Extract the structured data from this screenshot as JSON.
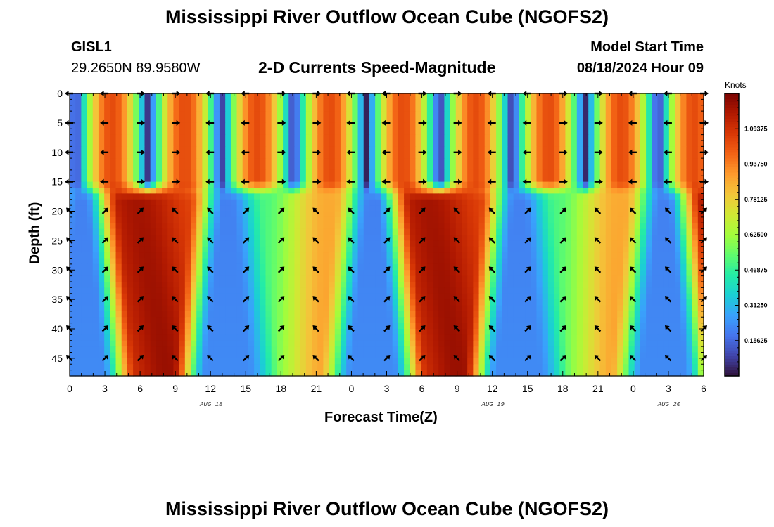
{
  "titles": {
    "main_top": "Mississippi River Outflow Ocean Cube (NGOFS2)",
    "main_bottom": "Mississippi River Outflow Ocean Cube (NGOFS2)"
  },
  "station": {
    "id": "GISL1",
    "coords": "29.2650N  89.9580W"
  },
  "model": {
    "start_label": "Model Start Time",
    "start_time": "08/18/2024 Hour 09"
  },
  "chart_data": {
    "type": "heatmap",
    "title": "2-D Currents Speed-Magnitude",
    "xlabel": "Forecast Time(Z)",
    "ylabel": "Depth (ft)",
    "x_ticks": [
      "0",
      "3",
      "6",
      "9",
      "12",
      "15",
      "18",
      "21",
      "0",
      "3",
      "6",
      "9",
      "12",
      "15",
      "18",
      "21",
      "0",
      "3",
      "6"
    ],
    "x_hours": [
      0,
      54
    ],
    "date_labels": [
      {
        "text": "AUG 18",
        "hour": 12
      },
      {
        "text": "AUG 19",
        "hour": 36
      },
      {
        "text": "AUG 20",
        "hour": 51
      }
    ],
    "y_ticks": [
      "0",
      "5",
      "10",
      "15",
      "20",
      "25",
      "30",
      "35",
      "40",
      "45"
    ],
    "ylim": [
      0,
      48
    ],
    "colorbar": {
      "units": "Knots",
      "range": [
        0,
        1.25
      ],
      "labels": [
        "1.09375",
        "0.93750",
        "0.78125",
        "0.62500",
        "0.46875",
        "0.31250",
        "0.15625"
      ],
      "label_values": [
        1.09375,
        0.9375,
        0.78125,
        0.625,
        0.46875,
        0.3125,
        0.15625
      ],
      "colors": [
        "#30123b",
        "#4145ab",
        "#4675ed",
        "#39a2fc",
        "#1bcfd4",
        "#24eca6",
        "#61fc6c",
        "#a4fc3b",
        "#d1e834",
        "#f3c63a",
        "#fe9b2d",
        "#f36315",
        "#d93806",
        "#b11901",
        "#7a0402"
      ]
    },
    "arrow_rows_ft": [
      0,
      5,
      10,
      15,
      20,
      25,
      30,
      35,
      40,
      45
    ],
    "arrow_cols_hr": [
      0,
      3,
      6,
      9,
      12,
      15,
      18,
      21,
      24,
      27,
      30,
      33,
      36,
      39,
      42,
      45,
      48,
      51,
      54
    ]
  }
}
